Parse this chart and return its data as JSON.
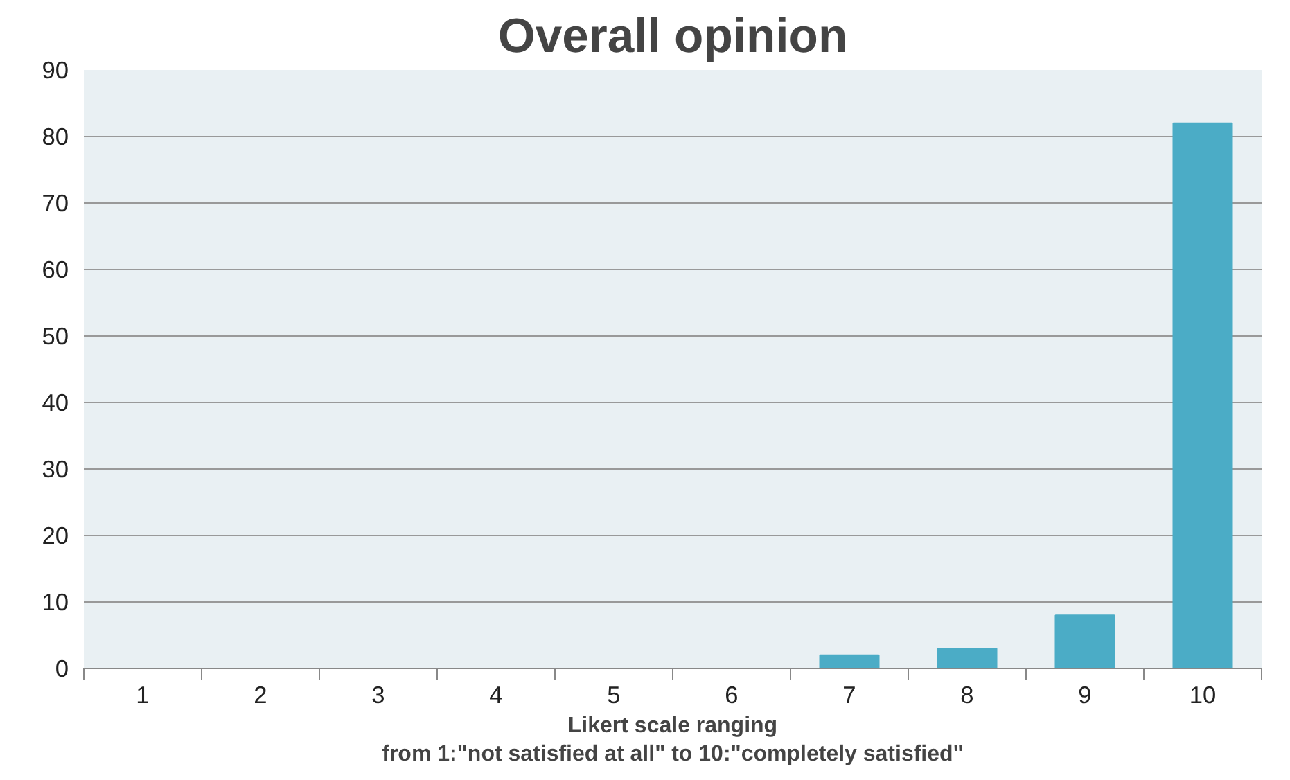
{
  "chart_data": {
    "type": "bar",
    "title": "Overall opinion",
    "xlabel": "Likert scale ranging\nfrom 1:\"not satisfied at all\" to 10:\"completely satisfied\"",
    "categories": [
      "1",
      "2",
      "3",
      "4",
      "5",
      "6",
      "7",
      "8",
      "9",
      "10"
    ],
    "values": [
      0,
      0,
      0,
      0,
      0,
      0,
      2,
      3,
      8,
      82
    ],
    "color": "#4bacc6",
    "ylim": [
      0,
      90
    ],
    "yticks": [
      0,
      10,
      20,
      30,
      40,
      50,
      60,
      70,
      80,
      90
    ],
    "grid": "y"
  }
}
